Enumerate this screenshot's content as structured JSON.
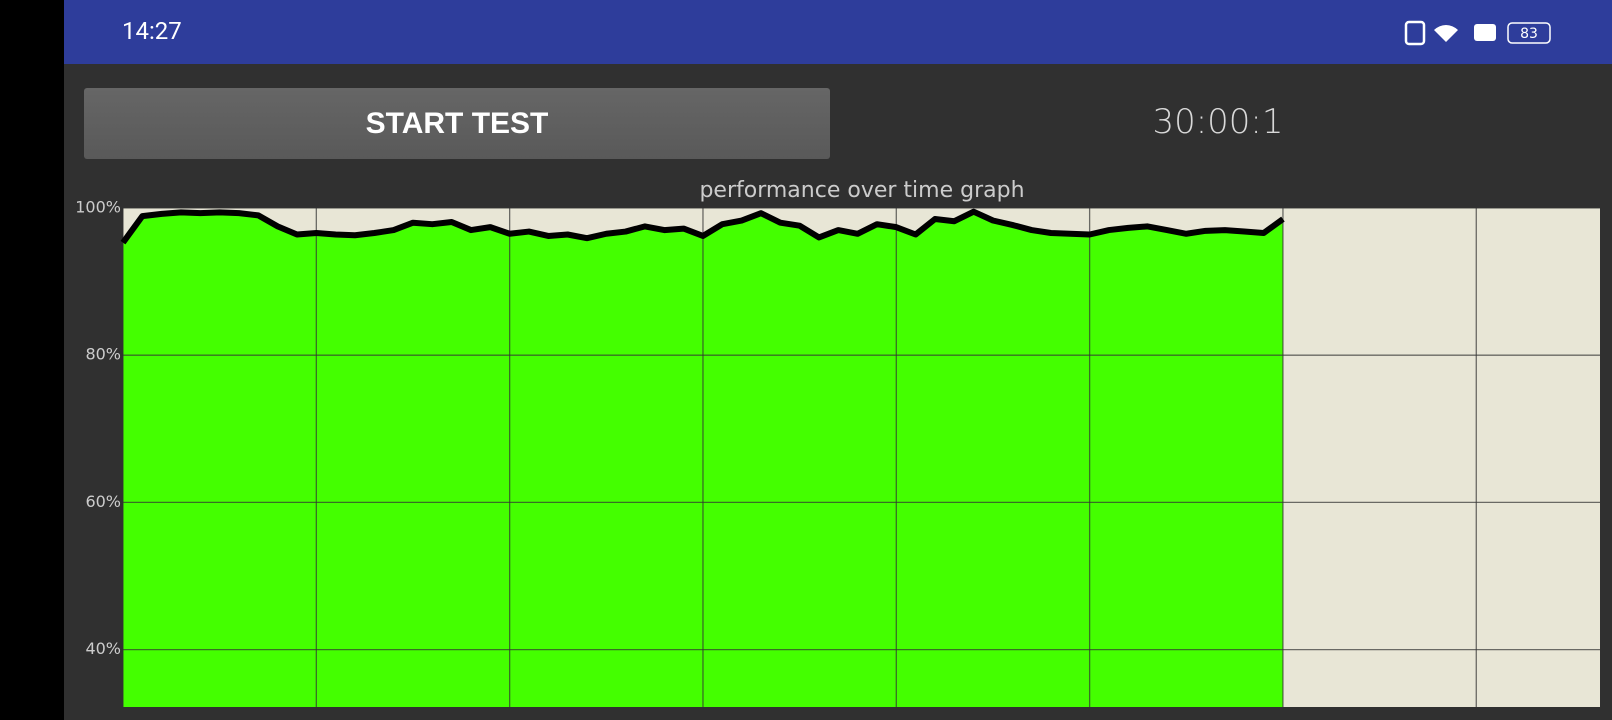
{
  "status_bar": {
    "time": "14:27",
    "battery": "83"
  },
  "button": {
    "label": "START TEST"
  },
  "timer": "30:00:1",
  "chart_data": {
    "type": "area",
    "title": "performance over time graph",
    "x": [
      0,
      1,
      2,
      3,
      4,
      5,
      6,
      7,
      8,
      9,
      10,
      11,
      12,
      13,
      14,
      15,
      16,
      17,
      18,
      19,
      20,
      21,
      22,
      23,
      24,
      25,
      26,
      27,
      28,
      29,
      30,
      31,
      32,
      33,
      34,
      35,
      36,
      37,
      38,
      39,
      40,
      41,
      42,
      43,
      44,
      45,
      46,
      47,
      48,
      49,
      50,
      51,
      52,
      53,
      54,
      55,
      56,
      57,
      58,
      59,
      60
    ],
    "values": [
      95.3,
      98.9,
      99.2,
      99.4,
      99.3,
      99.4,
      99.3,
      99.0,
      97.5,
      96.4,
      96.6,
      96.4,
      96.3,
      96.6,
      97.0,
      98.0,
      97.8,
      98.1,
      97.0,
      97.4,
      96.5,
      96.8,
      96.2,
      96.4,
      95.9,
      96.5,
      96.8,
      97.5,
      97.0,
      97.2,
      96.2,
      97.8,
      98.3,
      99.3,
      98.0,
      97.6,
      96.0,
      97.0,
      96.5,
      97.8,
      97.4,
      96.4,
      98.5,
      98.2,
      99.5,
      98.3,
      97.7,
      97.0,
      96.6,
      96.5,
      96.4,
      97.0,
      97.3,
      97.5,
      97.0,
      96.5,
      96.9,
      97.0,
      96.8,
      96.6,
      98.5
    ],
    "color": "#44ff00",
    "line_color": "#000000",
    "background": "#e8e6d6",
    "xlim": [
      0,
      76.4
    ],
    "xticks": [
      0,
      10,
      20,
      30,
      40,
      50,
      60,
      70
    ],
    "ylim": [
      32.2,
      100
    ],
    "yticks": [
      {
        "value": 100,
        "label": "100%"
      },
      {
        "value": 80,
        "label": "80%"
      },
      {
        "value": 60,
        "label": "60%"
      },
      {
        "value": 40,
        "label": "40%"
      }
    ],
    "grid": true
  }
}
